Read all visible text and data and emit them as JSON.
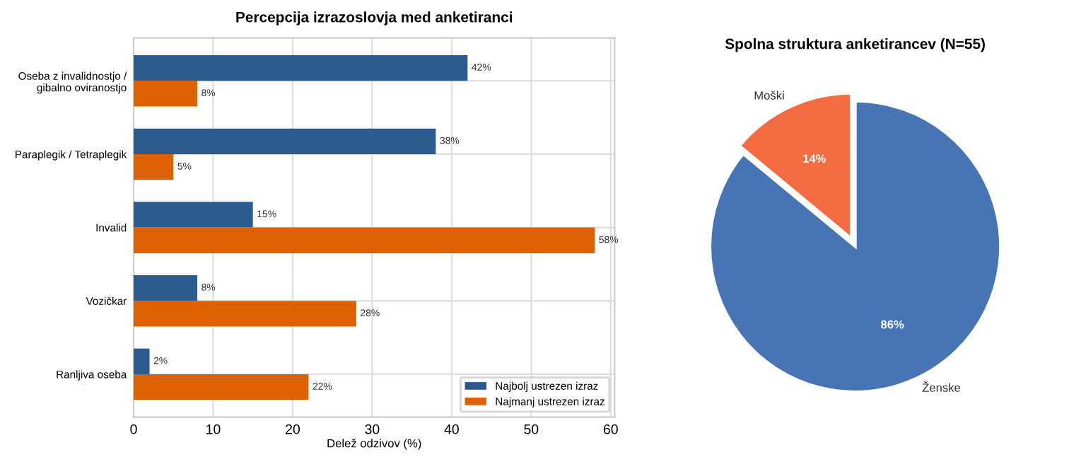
{
  "chart_data": [
    {
      "type": "bar",
      "orientation": "horizontal",
      "title": "Percepcija izrazoslovja med anketiranci",
      "xlabel": "Delež odzivov (%)",
      "categories": [
        "Oseba z invalidnostjo /\ngibalno oviranostjo",
        "Paraplegik / Tetraplegik",
        "Invalid",
        "Vozičkar",
        "Ranljiva oseba"
      ],
      "series": [
        {
          "name": "Najbolj ustrezen izraz",
          "color": "#2b5b8e",
          "values": [
            42,
            38,
            15,
            8,
            2
          ],
          "value_labels": [
            "42%",
            "38%",
            "15%",
            "8%",
            "2%"
          ]
        },
        {
          "name": "Najmanj ustrezen izraz",
          "color": "#dd6100",
          "values": [
            8,
            5,
            58,
            28,
            22
          ],
          "value_labels": [
            "8%",
            "5%",
            "58%",
            "28%",
            "22%"
          ]
        }
      ],
      "xlim": [
        0,
        60.5
      ],
      "xticks": [
        0,
        10,
        20,
        30,
        40,
        50,
        60
      ],
      "grid": true,
      "legend": "bottom right"
    },
    {
      "type": "pie",
      "title": "Spolna struktura anketirancev (N=55)",
      "categories": [
        "Moški",
        "Ženske"
      ],
      "values": [
        14,
        86
      ],
      "colors": [
        "#f26b41",
        "#4674b4"
      ],
      "value_labels": [
        "14%",
        "86%"
      ]
    }
  ]
}
